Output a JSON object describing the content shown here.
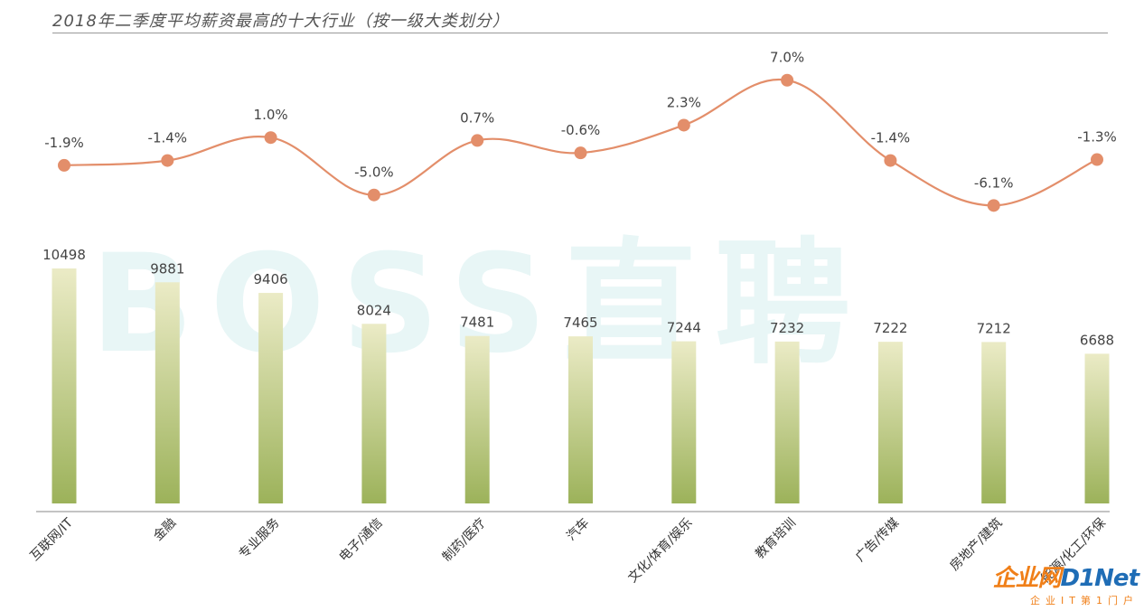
{
  "chart_data": {
    "type": "bar",
    "title": "2018年二季度平均薪资最高的十大行业（按一级大类划分）",
    "categories": [
      "互联网/IT",
      "金融",
      "专业服务",
      "电子/通信",
      "制药/医疗",
      "汽车",
      "文化/体育/娱乐",
      "教育培训",
      "广告/传媒",
      "房地产/建筑",
      "能源/化工/环保"
    ],
    "series": [
      {
        "values": [
          10498,
          9881,
          9406,
          8024,
          7481,
          7465,
          7244,
          7232,
          7222,
          7212,
          6688
        ]
      },
      {
        "type": "line",
        "values": [
          -1.9,
          -1.4,
          1.0,
          -5.0,
          0.7,
          -0.6,
          2.3,
          7.0,
          -1.4,
          -6.1,
          -1.3
        ],
        "labels": [
          "-1.9%",
          "-1.4%",
          "1.0%",
          "-5.0%",
          "0.7%",
          "-0.6%",
          "2.3%",
          "7.0%",
          "-1.4%",
          "-6.1%",
          "-1.3%"
        ]
      }
    ],
    "colors": {
      "bar_top": "#ebebc6",
      "bar_bottom": "#9cb25a",
      "line": "#e38e6a",
      "marker": "#e38e6a",
      "axis": "#888888"
    },
    "grid": false,
    "legend": "none"
  },
  "watermark": "BOSS直聘",
  "logo": {
    "main_a": "企业网",
    "main_b": "D1Net",
    "sub": "企业IT第1门户"
  }
}
